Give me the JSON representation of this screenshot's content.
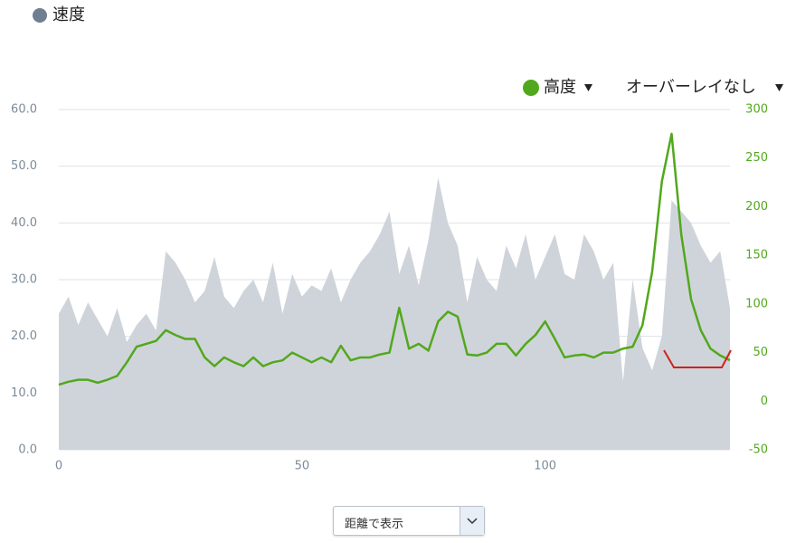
{
  "chart_data": {
    "type": "combo",
    "x": [
      0,
      2,
      4,
      6,
      8,
      10,
      12,
      14,
      16,
      18,
      20,
      22,
      24,
      26,
      28,
      30,
      32,
      34,
      36,
      38,
      40,
      42,
      44,
      46,
      48,
      50,
      52,
      54,
      56,
      58,
      60,
      62,
      64,
      66,
      68,
      70,
      72,
      74,
      76,
      78,
      80,
      82,
      84,
      86,
      88,
      90,
      92,
      94,
      96,
      98,
      100,
      102,
      104,
      106,
      108,
      110,
      112,
      114,
      116,
      118,
      120,
      122,
      124,
      126,
      128,
      130,
      132,
      134,
      136,
      138
    ],
    "series": [
      {
        "name": "速度",
        "type": "area",
        "color": "#cfd4db",
        "legend_color": "#6e7f91",
        "values": [
          24,
          27,
          22,
          26,
          23,
          20,
          25,
          19,
          22,
          24,
          21,
          35,
          33,
          30,
          26,
          28,
          34,
          27,
          25,
          28,
          30,
          26,
          33,
          24,
          31,
          27,
          29,
          28,
          32,
          26,
          30,
          33,
          35,
          38,
          42,
          31,
          36,
          29,
          37,
          48,
          40,
          36,
          26,
          34,
          30,
          28,
          36,
          32,
          38,
          30,
          34,
          38,
          31,
          30,
          38,
          35,
          30,
          33,
          12,
          30,
          18,
          14,
          20,
          44,
          42,
          40,
          36,
          33,
          35,
          25
        ]
      },
      {
        "name": "高度",
        "type": "line",
        "axis": "y2",
        "color": "#52a81c",
        "values": [
          17,
          20,
          22,
          22,
          19,
          22,
          26,
          40,
          56,
          59,
          62,
          73,
          68,
          64,
          64,
          45,
          36,
          45,
          40,
          36,
          45,
          36,
          40,
          42,
          50,
          45,
          40,
          45,
          40,
          57,
          42,
          45,
          45,
          48,
          50,
          96,
          54,
          59,
          52,
          82,
          92,
          87,
          48,
          47,
          50,
          59,
          59,
          47,
          59,
          68,
          82,
          64,
          45,
          47,
          48,
          45,
          50,
          50,
          54,
          56,
          78,
          133,
          226,
          275,
          171,
          105,
          73,
          54,
          47,
          42
        ]
      }
    ],
    "overlay_label": "オーバーレイなし",
    "x_mode_label": "距離で表示",
    "xlim": [
      0,
      138
    ],
    "xticks": [
      0,
      50,
      100
    ],
    "ylim": [
      0,
      60
    ],
    "yticks": [
      {
        "value": 0,
        "label": "0.0"
      },
      {
        "value": 10,
        "label": "10.0"
      },
      {
        "value": 20,
        "label": "20.0"
      },
      {
        "value": 30,
        "label": "30.0"
      },
      {
        "value": 40,
        "label": "40.0"
      },
      {
        "value": 50,
        "label": "50.0"
      },
      {
        "value": 60,
        "label": "60.0"
      }
    ],
    "y2lim": [
      -50,
      300
    ],
    "y2ticks": [
      -50,
      0,
      50,
      100,
      150,
      200,
      250,
      300
    ],
    "grid": true
  }
}
